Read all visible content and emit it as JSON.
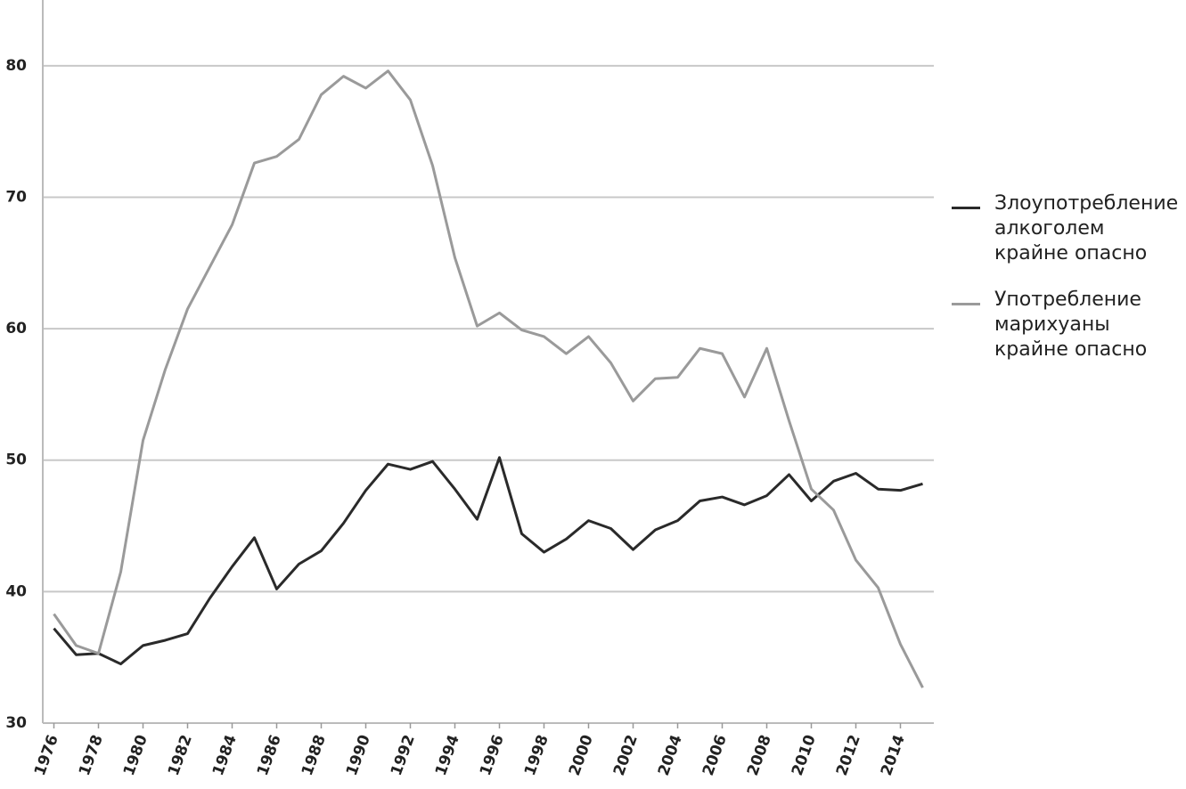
{
  "chart_data": {
    "type": "line",
    "x": [
      1976,
      1977,
      1978,
      1979,
      1980,
      1981,
      1982,
      1983,
      1984,
      1985,
      1986,
      1987,
      1988,
      1989,
      1990,
      1991,
      1992,
      1993,
      1994,
      1995,
      1996,
      1997,
      1998,
      1999,
      2000,
      2001,
      2002,
      2003,
      2004,
      2005,
      2006,
      2007,
      2008,
      2009,
      2010,
      2011,
      2012,
      2013,
      2014,
      2015
    ],
    "series": [
      {
        "name": "Злоупотребление\nалкоголем\nкрайне опасно",
        "color": "#2a2a2a",
        "values": [
          37.2,
          35.2,
          35.3,
          34.5,
          35.9,
          36.3,
          36.8,
          39.5,
          41.9,
          44.1,
          40.2,
          42.1,
          43.1,
          45.2,
          47.7,
          49.7,
          49.3,
          49.9,
          47.8,
          45.5,
          50.2,
          44.4,
          43.0,
          44.0,
          45.4,
          44.8,
          43.2,
          44.7,
          45.4,
          46.9,
          47.2,
          46.6,
          47.3,
          48.9,
          46.9,
          48.4,
          49.0,
          47.8,
          47.7,
          48.2
        ]
      },
      {
        "name": "Употребление\nмарихуаны\nкрайне опасно",
        "color": "#9a9a9a",
        "values": [
          38.3,
          35.9,
          35.3,
          41.5,
          51.5,
          56.9,
          61.5,
          64.7,
          67.9,
          72.6,
          73.1,
          74.4,
          77.8,
          79.2,
          78.3,
          79.6,
          77.4,
          72.4,
          65.4,
          60.2,
          61.2,
          59.9,
          59.4,
          58.1,
          59.4,
          57.4,
          54.5,
          56.2,
          56.3,
          58.5,
          58.1,
          54.8,
          58.5,
          53.0,
          47.8,
          46.2,
          42.4,
          40.3,
          36.0,
          32.7
        ]
      }
    ],
    "xlim": [
      1975.5,
      2015.5
    ],
    "xticks": [
      1976,
      1978,
      1980,
      1982,
      1984,
      1986,
      1988,
      1990,
      1992,
      1994,
      1996,
      1998,
      2000,
      2002,
      2004,
      2006,
      2008,
      2010,
      2012,
      2014
    ],
    "ylim": [
      30,
      85
    ],
    "yticks": [
      30,
      40,
      50,
      60,
      70,
      80
    ],
    "grid": true,
    "legend": "right"
  }
}
